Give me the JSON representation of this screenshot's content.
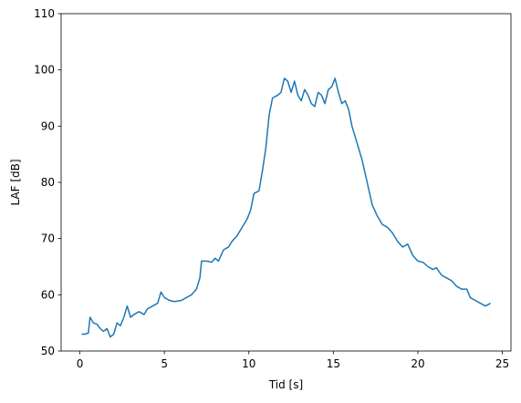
{
  "chart_data": {
    "type": "line",
    "xlabel": "Tid [s]",
    "ylabel": "LAF [dB]",
    "x": [
      0.1,
      0.3,
      0.5,
      0.6,
      0.8,
      1.0,
      1.2,
      1.4,
      1.6,
      1.8,
      2.0,
      2.2,
      2.4,
      2.6,
      2.8,
      3.0,
      3.2,
      3.5,
      3.8,
      4.0,
      4.3,
      4.6,
      4.8,
      5.0,
      5.3,
      5.6,
      6.0,
      6.3,
      6.6,
      6.9,
      7.1,
      7.2,
      7.5,
      7.8,
      8.0,
      8.2,
      8.5,
      8.8,
      9.0,
      9.3,
      9.6,
      9.9,
      10.1,
      10.3,
      10.6,
      10.8,
      11.0,
      11.2,
      11.4,
      11.7,
      11.9,
      12.1,
      12.3,
      12.5,
      12.7,
      12.9,
      13.1,
      13.3,
      13.5,
      13.7,
      13.9,
      14.1,
      14.3,
      14.5,
      14.7,
      14.9,
      15.1,
      15.3,
      15.5,
      15.7,
      15.9,
      16.1,
      16.4,
      16.7,
      17.0,
      17.3,
      17.6,
      17.9,
      18.2,
      18.5,
      18.8,
      19.1,
      19.4,
      19.7,
      20.0,
      20.3,
      20.6,
      20.9,
      21.1,
      21.4,
      21.7,
      22.0,
      22.3,
      22.6,
      22.9,
      23.1,
      23.4,
      23.7,
      24.0,
      24.3
    ],
    "series": [
      {
        "name": "LAF",
        "color": "#1f77b4",
        "values": [
          53,
          53,
          53.2,
          56,
          55,
          54.8,
          54,
          53.5,
          54,
          52.5,
          53,
          55,
          54.5,
          56,
          58,
          56,
          56.5,
          57,
          56.5,
          57.5,
          58,
          58.5,
          60.5,
          59.5,
          59,
          58.8,
          59,
          59.5,
          60,
          61,
          63,
          66,
          66,
          65.8,
          66.5,
          66,
          68,
          68.5,
          69.5,
          70.5,
          72,
          73.5,
          75,
          78,
          78.5,
          82,
          86,
          92,
          95,
          95.5,
          96,
          98.5,
          98,
          96,
          98,
          95.5,
          94.5,
          96.5,
          95.5,
          94,
          93.5,
          96,
          95.5,
          94,
          96.5,
          97,
          98.5,
          96,
          94,
          94.5,
          93,
          90,
          87,
          84,
          80,
          76,
          74,
          72.5,
          72,
          71,
          69.5,
          68.5,
          69,
          67,
          66,
          65.8,
          65,
          64.5,
          64.8,
          63.5,
          63,
          62.5,
          61.5,
          61,
          61,
          59.5,
          59,
          58.5,
          58,
          58.5
        ]
      }
    ],
    "xlim": [
      -1.11,
      25.51
    ],
    "xticks": [
      0,
      5,
      10,
      15,
      20,
      25
    ],
    "ylim": [
      50,
      110
    ],
    "yticks": [
      50,
      60,
      70,
      80,
      90,
      100,
      110
    ]
  }
}
